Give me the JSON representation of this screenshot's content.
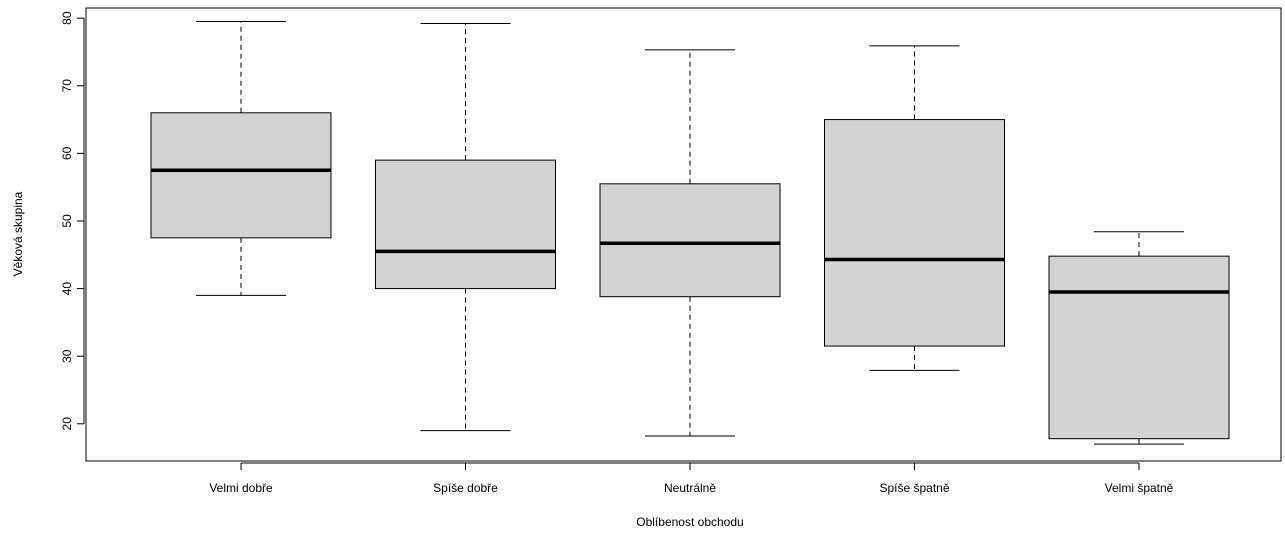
{
  "chart_data": {
    "type": "boxplot",
    "title": "",
    "xlabel": "Oblíbenost obchodu",
    "ylabel": "Věková skupina",
    "ylim": [
      14.5,
      81.5
    ],
    "y_ticks": [
      20,
      30,
      40,
      50,
      60,
      70,
      80
    ],
    "categories": [
      "Velmi dobře",
      "Spíše dobře",
      "Neutrálně",
      "Spíše špatně",
      "Velmi špatně"
    ],
    "boxes": [
      {
        "whisker_low": 39.0,
        "q1": 47.5,
        "median": 57.5,
        "q3": 66.0,
        "whisker_high": 79.5
      },
      {
        "whisker_low": 19.0,
        "q1": 40.0,
        "median": 45.5,
        "q3": 59.0,
        "whisker_high": 79.2
      },
      {
        "whisker_low": 18.2,
        "q1": 38.8,
        "median": 46.7,
        "q3": 55.5,
        "whisker_high": 75.3
      },
      {
        "whisker_low": 27.9,
        "q1": 31.5,
        "median": 44.3,
        "q3": 65.0,
        "whisker_high": 75.9
      },
      {
        "whisker_low": 17.0,
        "q1": 17.8,
        "median": 39.5,
        "q3": 44.8,
        "whisker_high": 48.4
      }
    ],
    "box_fill": "#d3d3d3",
    "line_color": "#000000",
    "grid": false
  }
}
